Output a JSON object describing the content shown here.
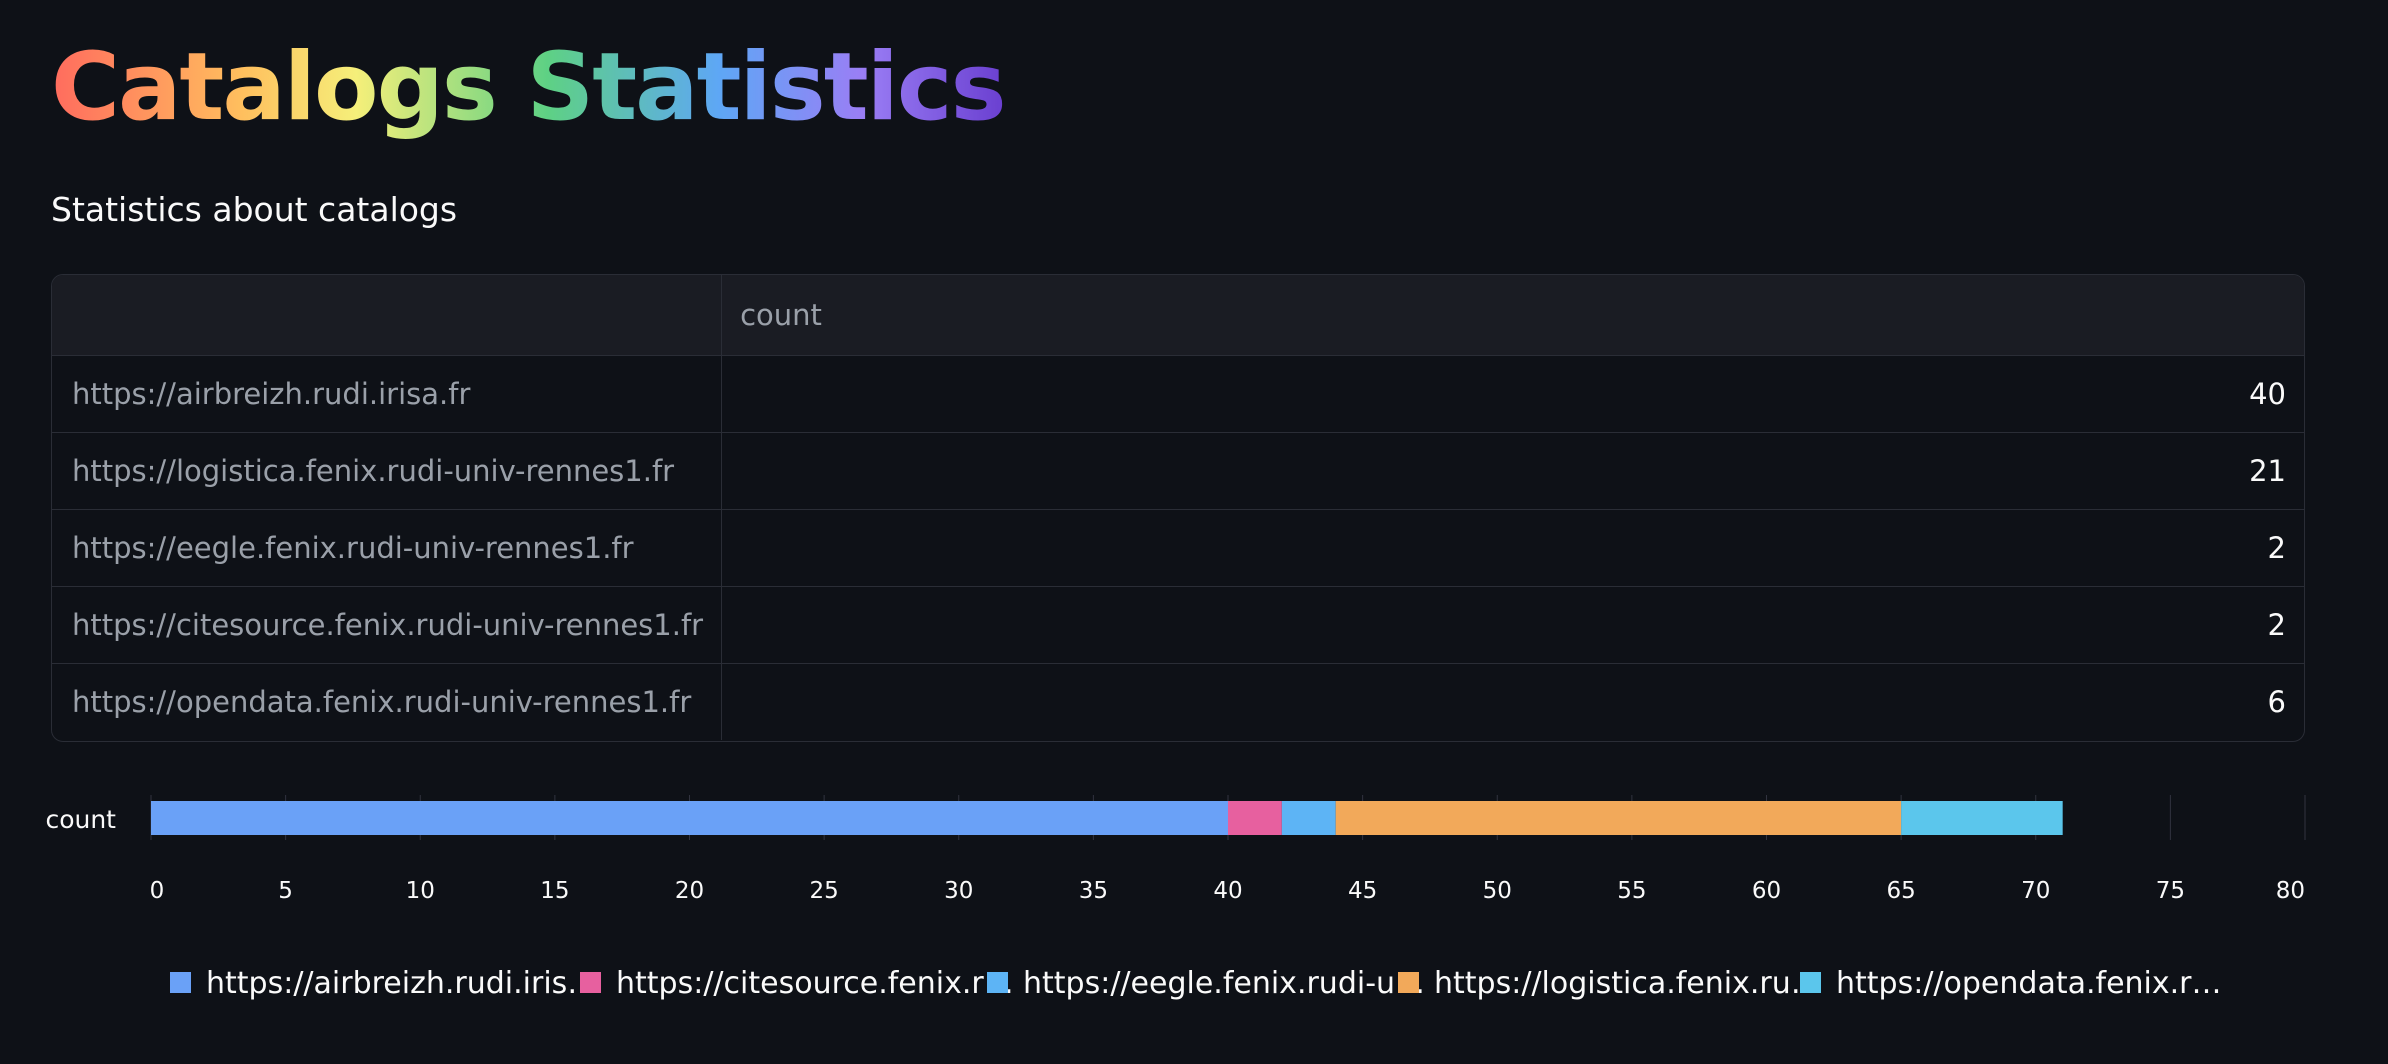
{
  "title": "Catalogs Statistics",
  "subtitle": "Statistics about catalogs",
  "table": {
    "index_header": "",
    "column_header": "count",
    "rows": [
      {
        "index": "https://airbreizh.rudi.irisa.fr",
        "count": "40"
      },
      {
        "index": "https://logistica.fenix.rudi-univ-rennes1.fr",
        "count": "21"
      },
      {
        "index": "https://eegle.fenix.rudi-univ-rennes1.fr",
        "count": "2"
      },
      {
        "index": "https://citesource.fenix.rudi-univ-rennes1.fr",
        "count": "2"
      },
      {
        "index": "https://opendata.fenix.rudi-univ-rennes1.fr",
        "count": "6"
      }
    ]
  },
  "chart_data": {
    "type": "bar",
    "orientation": "horizontal",
    "stacked": true,
    "categories": [
      "count"
    ],
    "series": [
      {
        "name": "https://airbreizh.rudi.iris…",
        "values": [
          40
        ],
        "color": "#6aa1f7"
      },
      {
        "name": "https://citesource.fenix.r…",
        "values": [
          2
        ],
        "color": "#e7609f"
      },
      {
        "name": "https://eegle.fenix.rudi-u…",
        "values": [
          2
        ],
        "color": "#5db4f5"
      },
      {
        "name": "https://logistica.fenix.ru…",
        "values": [
          21
        ],
        "color": "#f2a95a"
      },
      {
        "name": "https://opendata.fenix.r…",
        "values": [
          6
        ],
        "color": "#5bc6ec"
      }
    ],
    "xlim": [
      0,
      80
    ],
    "xticks": [
      "0",
      "5",
      "10",
      "15",
      "20",
      "25",
      "30",
      "35",
      "40",
      "45",
      "50",
      "55",
      "60",
      "65",
      "70",
      "75",
      "80"
    ],
    "grid": true,
    "legend_position": "bottom"
  }
}
